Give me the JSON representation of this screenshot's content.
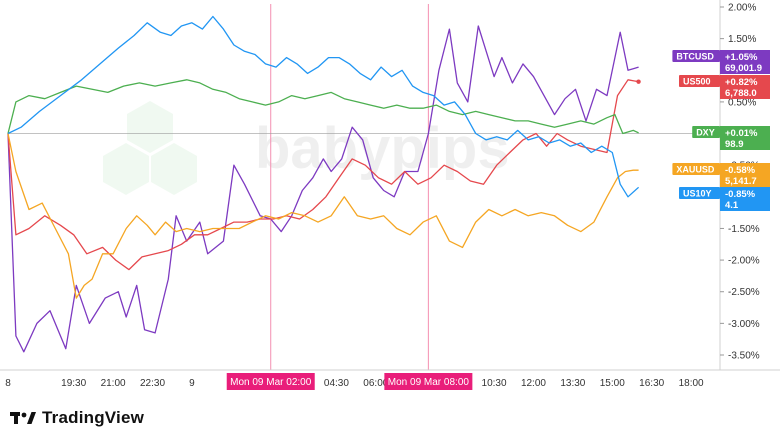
{
  "brand": {
    "name": "TradingView",
    "watermark": "babypips"
  },
  "chart_data": {
    "type": "line",
    "ylim": [
      -3.7,
      2.05
    ],
    "y_ticks": [
      "2.00%",
      "1.50%",
      "1.00%",
      "0.50%",
      "0.00%",
      "-0.50%",
      "-1.00%",
      "-1.50%",
      "-2.00%",
      "-2.50%",
      "-3.00%",
      "-3.50%"
    ],
    "y_tick_values": [
      2.0,
      1.5,
      1.0,
      0.5,
      0.0,
      -0.5,
      -1.0,
      -1.5,
      -2.0,
      -2.5,
      -3.0,
      -3.5
    ],
    "x_ticks": [
      {
        "label": "8",
        "t": 0
      },
      {
        "label": "19:30",
        "t": 2.5
      },
      {
        "label": "21:00",
        "t": 4
      },
      {
        "label": "22:30",
        "t": 5.5
      },
      {
        "label": "9",
        "t": 7
      },
      {
        "label": "04:30",
        "t": 12.5
      },
      {
        "label": "06:00",
        "t": 14
      },
      {
        "label": "10:30",
        "t": 18.5
      },
      {
        "label": "12:00",
        "t": 20
      },
      {
        "label": "13:30",
        "t": 21.5
      },
      {
        "label": "15:00",
        "t": 23
      },
      {
        "label": "16:30",
        "t": 24.5
      },
      {
        "label": "18:00",
        "t": 26
      }
    ],
    "xlim": [
      0,
      27.1
    ],
    "highlighted_x": [
      {
        "label": "Mon 09 Mar  02:00",
        "t": 10
      },
      {
        "label": "Mon 09 Mar  08:00",
        "t": 16
      }
    ],
    "series": [
      {
        "name": "BTCUSD",
        "color": "#7d3ac1",
        "change": "+1.05%",
        "price": "69,001.9",
        "points": [
          [
            0,
            0
          ],
          [
            0.3,
            -3.2
          ],
          [
            0.6,
            -3.45
          ],
          [
            1.1,
            -3.0
          ],
          [
            1.6,
            -2.8
          ],
          [
            2.2,
            -3.4
          ],
          [
            2.6,
            -2.4
          ],
          [
            3.1,
            -3.0
          ],
          [
            3.7,
            -2.6
          ],
          [
            4.2,
            -2.5
          ],
          [
            4.5,
            -2.9
          ],
          [
            4.9,
            -2.4
          ],
          [
            5.2,
            -3.1
          ],
          [
            5.6,
            -3.15
          ],
          [
            6.1,
            -2.3
          ],
          [
            6.4,
            -1.3
          ],
          [
            6.8,
            -1.7
          ],
          [
            7.3,
            -1.4
          ],
          [
            7.6,
            -1.9
          ],
          [
            8.2,
            -1.7
          ],
          [
            8.6,
            -0.5
          ],
          [
            9.0,
            -0.8
          ],
          [
            9.6,
            -1.3
          ],
          [
            10.0,
            -1.35
          ],
          [
            10.4,
            -1.55
          ],
          [
            10.8,
            -1.3
          ],
          [
            11.2,
            -0.9
          ],
          [
            11.6,
            -0.7
          ],
          [
            12.0,
            -0.4
          ],
          [
            12.3,
            -0.6
          ],
          [
            12.7,
            -0.4
          ],
          [
            13.1,
            0.1
          ],
          [
            13.5,
            -0.1
          ],
          [
            13.9,
            -0.7
          ],
          [
            14.3,
            -0.9
          ],
          [
            14.7,
            -1.0
          ],
          [
            15.1,
            -0.6
          ],
          [
            15.6,
            -0.6
          ],
          [
            16.0,
            0.0
          ],
          [
            16.4,
            1.0
          ],
          [
            16.8,
            1.65
          ],
          [
            17.1,
            0.8
          ],
          [
            17.5,
            0.5
          ],
          [
            17.9,
            1.7
          ],
          [
            18.2,
            1.3
          ],
          [
            18.5,
            0.9
          ],
          [
            18.8,
            1.2
          ],
          [
            19.2,
            0.8
          ],
          [
            19.6,
            1.1
          ],
          [
            20.0,
            0.9
          ],
          [
            20.4,
            0.6
          ],
          [
            20.8,
            0.3
          ],
          [
            21.2,
            0.55
          ],
          [
            21.6,
            0.7
          ],
          [
            22.0,
            0.2
          ],
          [
            22.4,
            0.7
          ],
          [
            22.8,
            0.6
          ],
          [
            23.3,
            1.6
          ],
          [
            23.6,
            1.0
          ],
          [
            24.0,
            1.05
          ]
        ]
      },
      {
        "name": "US500",
        "color": "#e5484d",
        "change": "+0.82%",
        "price": "6,788.0",
        "points": [
          [
            0,
            0
          ],
          [
            0.3,
            -1.6
          ],
          [
            0.8,
            -1.5
          ],
          [
            1.4,
            -1.3
          ],
          [
            2.0,
            -1.45
          ],
          [
            2.5,
            -1.6
          ],
          [
            3.0,
            -1.9
          ],
          [
            3.6,
            -1.8
          ],
          [
            4.1,
            -2.0
          ],
          [
            4.6,
            -2.15
          ],
          [
            5.1,
            -1.95
          ],
          [
            5.6,
            -1.9
          ],
          [
            6.1,
            -1.85
          ],
          [
            6.6,
            -1.75
          ],
          [
            7.1,
            -1.6
          ],
          [
            7.6,
            -1.6
          ],
          [
            8.1,
            -1.5
          ],
          [
            8.6,
            -1.4
          ],
          [
            9.1,
            -1.4
          ],
          [
            9.6,
            -1.35
          ],
          [
            10.1,
            -1.35
          ],
          [
            10.6,
            -1.3
          ],
          [
            11.1,
            -1.35
          ],
          [
            11.6,
            -1.2
          ],
          [
            12.1,
            -1.0
          ],
          [
            12.6,
            -0.7
          ],
          [
            13.1,
            -0.4
          ],
          [
            13.6,
            -0.5
          ],
          [
            14.1,
            -0.7
          ],
          [
            14.6,
            -0.8
          ],
          [
            15.1,
            -0.6
          ],
          [
            15.6,
            -0.8
          ],
          [
            16.1,
            -0.7
          ],
          [
            16.6,
            -0.5
          ],
          [
            17.1,
            -0.6
          ],
          [
            17.6,
            -0.75
          ],
          [
            18.1,
            -0.8
          ],
          [
            18.6,
            -0.5
          ],
          [
            19.1,
            -0.3
          ],
          [
            19.6,
            -0.1
          ],
          [
            20.1,
            0.0
          ],
          [
            20.5,
            -0.2
          ],
          [
            20.9,
            0.0
          ],
          [
            21.3,
            -0.1
          ],
          [
            21.8,
            -0.2
          ],
          [
            22.3,
            -0.25
          ],
          [
            22.8,
            -0.3
          ],
          [
            23.2,
            0.6
          ],
          [
            23.6,
            0.85
          ],
          [
            24.0,
            0.82
          ]
        ]
      },
      {
        "name": "DXY",
        "color": "#4caf50",
        "change": "+0.01%",
        "price": "98.9",
        "points": [
          [
            0,
            0
          ],
          [
            0.3,
            0.5
          ],
          [
            0.8,
            0.6
          ],
          [
            1.4,
            0.55
          ],
          [
            2.0,
            0.65
          ],
          [
            2.6,
            0.75
          ],
          [
            3.2,
            0.7
          ],
          [
            3.8,
            0.65
          ],
          [
            4.4,
            0.75
          ],
          [
            5.0,
            0.8
          ],
          [
            5.6,
            0.75
          ],
          [
            6.2,
            0.8
          ],
          [
            6.8,
            0.85
          ],
          [
            7.3,
            0.8
          ],
          [
            7.8,
            0.7
          ],
          [
            8.3,
            0.65
          ],
          [
            8.8,
            0.55
          ],
          [
            9.3,
            0.5
          ],
          [
            9.8,
            0.45
          ],
          [
            10.3,
            0.5
          ],
          [
            10.8,
            0.6
          ],
          [
            11.3,
            0.55
          ],
          [
            11.8,
            0.6
          ],
          [
            12.3,
            0.65
          ],
          [
            12.8,
            0.55
          ],
          [
            13.3,
            0.5
          ],
          [
            13.8,
            0.45
          ],
          [
            14.3,
            0.4
          ],
          [
            14.8,
            0.45
          ],
          [
            15.3,
            0.4
          ],
          [
            15.8,
            0.4
          ],
          [
            16.3,
            0.45
          ],
          [
            16.8,
            0.35
          ],
          [
            17.3,
            0.3
          ],
          [
            17.8,
            0.35
          ],
          [
            18.3,
            0.3
          ],
          [
            18.8,
            0.25
          ],
          [
            19.3,
            0.2
          ],
          [
            19.8,
            0.2
          ],
          [
            20.3,
            0.15
          ],
          [
            20.8,
            0.1
          ],
          [
            21.3,
            0.15
          ],
          [
            21.8,
            0.2
          ],
          [
            22.3,
            0.15
          ],
          [
            22.8,
            0.25
          ],
          [
            23.1,
            0.3
          ],
          [
            23.4,
            0.0
          ],
          [
            23.8,
            0.05
          ],
          [
            24.0,
            0.01
          ]
        ]
      },
      {
        "name": "XAUUSD",
        "color": "#f5a623",
        "change": "-0.58%",
        "price": "5,141.7",
        "points": [
          [
            0,
            0
          ],
          [
            0.3,
            -0.6
          ],
          [
            0.8,
            -1.2
          ],
          [
            1.3,
            -1.1
          ],
          [
            1.8,
            -1.5
          ],
          [
            2.3,
            -1.9
          ],
          [
            2.6,
            -2.6
          ],
          [
            2.9,
            -2.4
          ],
          [
            3.2,
            -2.3
          ],
          [
            3.6,
            -1.9
          ],
          [
            4.0,
            -1.9
          ],
          [
            4.5,
            -1.5
          ],
          [
            4.9,
            -1.3
          ],
          [
            5.3,
            -1.45
          ],
          [
            5.6,
            -1.6
          ],
          [
            6.0,
            -1.4
          ],
          [
            6.4,
            -1.55
          ],
          [
            6.8,
            -1.5
          ],
          [
            7.3,
            -1.55
          ],
          [
            7.8,
            -1.5
          ],
          [
            8.3,
            -1.5
          ],
          [
            8.8,
            -1.5
          ],
          [
            9.3,
            -1.4
          ],
          [
            9.8,
            -1.3
          ],
          [
            10.3,
            -1.35
          ],
          [
            10.8,
            -1.25
          ],
          [
            11.3,
            -1.3
          ],
          [
            11.8,
            -1.4
          ],
          [
            12.3,
            -1.3
          ],
          [
            12.8,
            -1.0
          ],
          [
            13.3,
            -1.3
          ],
          [
            13.8,
            -1.35
          ],
          [
            14.3,
            -1.3
          ],
          [
            14.8,
            -1.5
          ],
          [
            15.3,
            -1.6
          ],
          [
            15.8,
            -1.4
          ],
          [
            16.3,
            -1.3
          ],
          [
            16.8,
            -1.7
          ],
          [
            17.3,
            -1.8
          ],
          [
            17.8,
            -1.4
          ],
          [
            18.3,
            -1.2
          ],
          [
            18.8,
            -1.3
          ],
          [
            19.3,
            -1.2
          ],
          [
            19.8,
            -1.3
          ],
          [
            20.3,
            -1.25
          ],
          [
            20.8,
            -1.3
          ],
          [
            21.3,
            -1.45
          ],
          [
            21.8,
            -1.55
          ],
          [
            22.3,
            -1.4
          ],
          [
            22.8,
            -1.0
          ],
          [
            23.2,
            -0.7
          ],
          [
            23.5,
            -0.6
          ],
          [
            23.8,
            -0.58
          ],
          [
            24.0,
            -0.58
          ]
        ]
      },
      {
        "name": "US10Y",
        "color": "#2196f3",
        "change": "-0.85%",
        "price": "4.1",
        "points": [
          [
            0,
            0
          ],
          [
            0.5,
            0.1
          ],
          [
            1.2,
            0.35
          ],
          [
            2.0,
            0.6
          ],
          [
            2.8,
            0.85
          ],
          [
            3.5,
            1.1
          ],
          [
            4.2,
            1.35
          ],
          [
            4.8,
            1.55
          ],
          [
            5.3,
            1.75
          ],
          [
            5.8,
            1.6
          ],
          [
            6.2,
            1.55
          ],
          [
            6.6,
            1.7
          ],
          [
            7.0,
            1.75
          ],
          [
            7.4,
            1.65
          ],
          [
            7.8,
            1.85
          ],
          [
            8.2,
            1.65
          ],
          [
            8.6,
            1.4
          ],
          [
            9.0,
            1.3
          ],
          [
            9.4,
            1.25
          ],
          [
            9.8,
            1.1
          ],
          [
            10.2,
            1.05
          ],
          [
            10.6,
            1.2
          ],
          [
            11.0,
            1.1
          ],
          [
            11.4,
            0.95
          ],
          [
            11.8,
            1.05
          ],
          [
            12.2,
            1.2
          ],
          [
            12.6,
            1.2
          ],
          [
            13.0,
            1.1
          ],
          [
            13.4,
            0.95
          ],
          [
            13.8,
            0.85
          ],
          [
            14.2,
            1.05
          ],
          [
            14.6,
            0.9
          ],
          [
            15.0,
            1.0
          ],
          [
            15.4,
            0.75
          ],
          [
            15.8,
            0.65
          ],
          [
            16.2,
            0.6
          ],
          [
            16.6,
            0.45
          ],
          [
            17.0,
            0.5
          ],
          [
            17.4,
            0.3
          ],
          [
            17.8,
            0.0
          ],
          [
            18.2,
            -0.1
          ],
          [
            18.6,
            -0.05
          ],
          [
            19.0,
            -0.1
          ],
          [
            19.4,
            0.05
          ],
          [
            19.8,
            -0.1
          ],
          [
            20.2,
            -0.05
          ],
          [
            20.6,
            -0.15
          ],
          [
            21.0,
            -0.1
          ],
          [
            21.4,
            -0.2
          ],
          [
            21.8,
            -0.15
          ],
          [
            22.2,
            -0.3
          ],
          [
            22.6,
            -0.2
          ],
          [
            23.0,
            -0.3
          ],
          [
            23.3,
            -0.8
          ],
          [
            23.6,
            -1.0
          ],
          [
            24.0,
            -0.85
          ]
        ]
      }
    ]
  }
}
